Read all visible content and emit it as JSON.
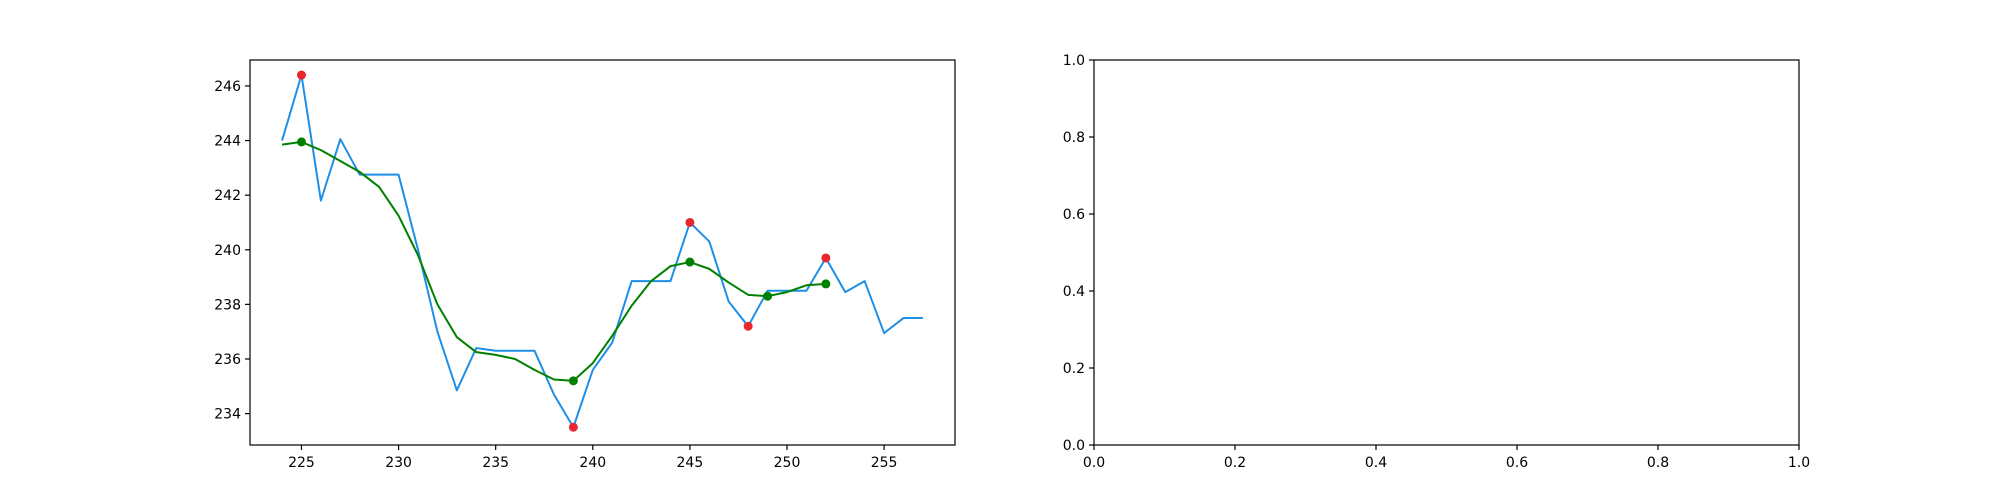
{
  "chart_data": [
    {
      "type": "line",
      "title": "",
      "xlabel": "",
      "ylabel": "",
      "xlim": [
        222.35,
        258.65
      ],
      "ylim": [
        232.85,
        246.95
      ],
      "xticks": [
        225,
        230,
        235,
        240,
        245,
        250,
        255
      ],
      "yticks": [
        234,
        236,
        238,
        240,
        242,
        244,
        246
      ],
      "grid": false,
      "legend": "none",
      "series": [
        {
          "kind": "line",
          "color": "#1f8fe6",
          "x": [
            224,
            225,
            226,
            227,
            228,
            229,
            230,
            231,
            232,
            233,
            234,
            235,
            236,
            237,
            238,
            239,
            240,
            241,
            242,
            243,
            244,
            245,
            246,
            247,
            248,
            249,
            250,
            251,
            252,
            253,
            254,
            255,
            256,
            257
          ],
          "y": [
            244.0,
            246.4,
            241.8,
            244.05,
            242.75,
            242.75,
            242.75,
            240.0,
            237.0,
            234.85,
            236.4,
            236.3,
            236.3,
            236.3,
            234.7,
            233.5,
            235.6,
            236.6,
            238.85,
            238.85,
            238.85,
            241.0,
            240.3,
            238.1,
            237.2,
            238.5,
            238.5,
            238.5,
            239.7,
            238.45,
            238.85,
            236.95,
            237.5,
            237.5
          ]
        },
        {
          "kind": "line",
          "color": "#008000",
          "x": [
            224,
            225,
            226,
            227,
            228,
            229,
            230,
            231,
            232,
            233,
            234,
            235,
            236,
            237,
            238,
            239,
            240,
            241,
            242,
            243,
            244,
            245,
            246,
            247,
            248,
            249,
            250,
            251,
            252
          ],
          "y": [
            243.85,
            243.95,
            243.65,
            243.25,
            242.85,
            242.3,
            241.25,
            239.8,
            238.0,
            236.8,
            236.25,
            236.15,
            236.0,
            235.6,
            235.25,
            235.2,
            235.85,
            236.85,
            237.95,
            238.85,
            239.4,
            239.55,
            239.3,
            238.8,
            238.35,
            238.3,
            238.45,
            238.7,
            238.75
          ]
        },
        {
          "kind": "scatter",
          "color": "#e8282e",
          "x": [
            225,
            239,
            245,
            248,
            252
          ],
          "y": [
            246.4,
            233.5,
            241.0,
            237.2,
            239.7
          ]
        },
        {
          "kind": "scatter",
          "color": "#008000",
          "x": [
            225,
            239,
            245,
            249,
            252
          ],
          "y": [
            243.95,
            235.2,
            239.55,
            238.3,
            238.75
          ]
        }
      ]
    },
    {
      "type": "line",
      "title": "",
      "xlabel": "",
      "ylabel": "",
      "xlim": [
        0,
        1
      ],
      "ylim": [
        0,
        1
      ],
      "xticks": [
        0.0,
        0.2,
        0.4,
        0.6,
        0.8,
        1.0
      ],
      "yticks": [
        0.0,
        0.2,
        0.4,
        0.6,
        0.8,
        1.0
      ],
      "tick_format": "fixed1",
      "grid": false,
      "legend": "none",
      "series": []
    }
  ]
}
